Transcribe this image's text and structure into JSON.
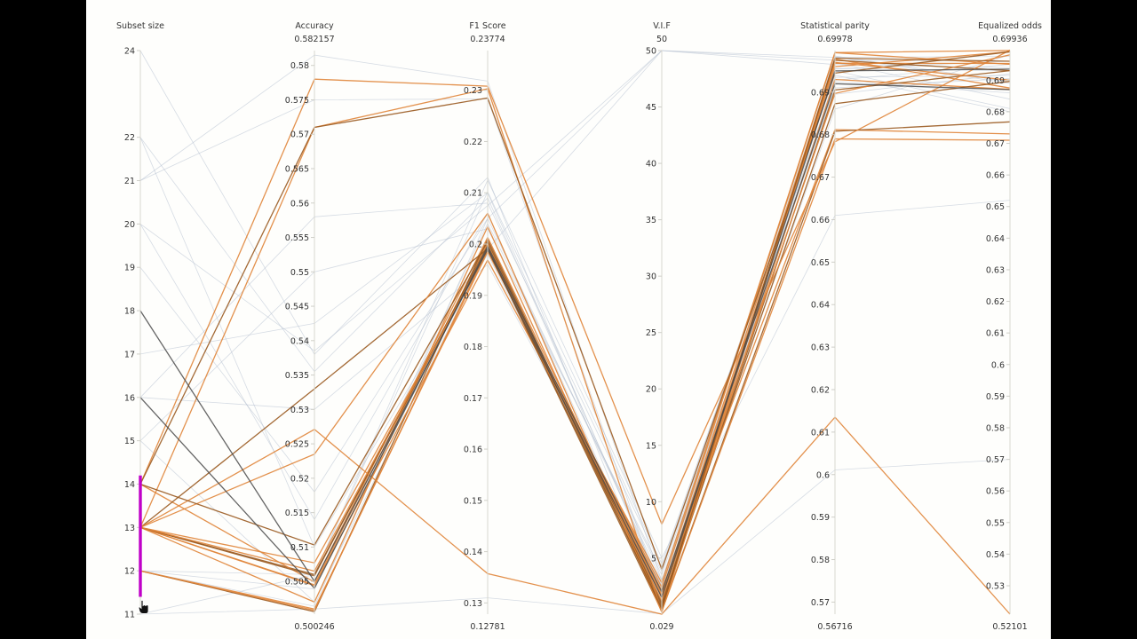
{
  "chart_data": {
    "type": "parallel_coordinates",
    "colors": {
      "selected": "#e0853a",
      "selected_dark": "#9a5a20",
      "unselected": "#b4bfcf",
      "highlight": "#4a4a4a",
      "brush": "#c000c8"
    },
    "axes": [
      {
        "key": "subset",
        "title": "Subset size",
        "min": 11,
        "max": 24,
        "min_label": "",
        "max_label": "",
        "ticks": [
          11,
          12,
          13,
          14,
          15,
          16,
          17,
          18,
          19,
          20,
          21,
          22,
          24
        ],
        "tick_labels": [
          "11",
          "12",
          "13",
          "14",
          "15",
          "16",
          "17",
          "18",
          "19",
          "20",
          "21",
          "22",
          "24"
        ]
      },
      {
        "key": "acc",
        "title": "Accuracy",
        "min": 0.500246,
        "max": 0.582157,
        "min_label": "0.500246",
        "max_label": "0.582157",
        "ticks": [
          0.505,
          0.51,
          0.515,
          0.52,
          0.525,
          0.53,
          0.535,
          0.54,
          0.545,
          0.55,
          0.555,
          0.56,
          0.565,
          0.57,
          0.575,
          0.58
        ],
        "tick_labels": [
          "0.505",
          "0.51",
          "0.515",
          "0.52",
          "0.525",
          "0.53",
          "0.535",
          "0.54",
          "0.545",
          "0.55",
          "0.555",
          "0.56",
          "0.565",
          "0.57",
          "0.575",
          "0.58"
        ]
      },
      {
        "key": "f1",
        "title": "F1 Score",
        "min": 0.12781,
        "max": 0.23774,
        "min_label": "0.12781",
        "max_label": "0.23774",
        "ticks": [
          0.13,
          0.14,
          0.15,
          0.16,
          0.17,
          0.18,
          0.19,
          0.2,
          0.21,
          0.22,
          0.23
        ],
        "tick_labels": [
          "0.13",
          "0.14",
          "0.15",
          "0.16",
          "0.17",
          "0.18",
          "0.19",
          "0.2",
          "0.21",
          "0.22",
          "0.23"
        ]
      },
      {
        "key": "vif",
        "title": "V.I.F",
        "min": 0.029,
        "max": 50,
        "min_label": "0.029",
        "max_label": "50",
        "ticks": [
          5,
          10,
          15,
          20,
          25,
          30,
          35,
          40,
          45,
          50
        ],
        "tick_labels": [
          "5",
          "10",
          "15",
          "20",
          "25",
          "30",
          "35",
          "40",
          "45",
          "50"
        ]
      },
      {
        "key": "sp",
        "title": "Statistical parity",
        "min": 0.56716,
        "max": 0.69978,
        "min_label": "0.56716",
        "max_label": "0.69978",
        "ticks": [
          0.57,
          0.58,
          0.59,
          0.6,
          0.61,
          0.62,
          0.63,
          0.64,
          0.65,
          0.66,
          0.67,
          0.68,
          0.69
        ],
        "tick_labels": [
          "0.57",
          "0.58",
          "0.59",
          "0.6",
          "0.61",
          "0.62",
          "0.63",
          "0.64",
          "0.65",
          "0.66",
          "0.67",
          "0.68",
          "0.69"
        ]
      },
      {
        "key": "eo",
        "title": "Equalized odds",
        "min": 0.52101,
        "max": 0.69936,
        "min_label": "0.52101",
        "max_label": "0.69936",
        "ticks": [
          0.53,
          0.54,
          0.55,
          0.56,
          0.57,
          0.58,
          0.59,
          0.6,
          0.61,
          0.62,
          0.63,
          0.64,
          0.65,
          0.66,
          0.67,
          0.68,
          0.69
        ],
        "tick_labels": [
          "0.53",
          "0.54",
          "0.55",
          "0.56",
          "0.57",
          "0.58",
          "0.59",
          "0.6",
          "0.61",
          "0.62",
          "0.63",
          "0.64",
          "0.65",
          "0.66",
          "0.67",
          "0.68",
          "0.69"
        ]
      }
    ],
    "brush": {
      "axis": "subset",
      "range": [
        11.4,
        14.2
      ]
    },
    "series": [
      {
        "status": "selected",
        "values": [
          13,
          0.5077,
          0.1987,
          1.8,
          0.6978,
          0.6875
        ]
      },
      {
        "status": "selected",
        "values": [
          13,
          0.5045,
          0.2003,
          1.2,
          0.6968,
          0.6953
        ]
      },
      {
        "status": "selected",
        "values": [
          12,
          0.5006,
          0.201,
          0.8,
          0.6975,
          0.693
        ]
      },
      {
        "status": "selected",
        "values": [
          13,
          0.502,
          0.2034,
          0.5,
          0.693,
          0.6871
        ]
      },
      {
        "status": "selected",
        "values": [
          12,
          0.501,
          0.1985,
          2.4,
          0.6993,
          0.6994
        ]
      },
      {
        "status": "selected",
        "values": [
          13,
          0.506,
          0.1992,
          0.6,
          0.6905,
          0.693
        ]
      },
      {
        "status": "selected",
        "values": [
          14,
          0.5049,
          0.2013,
          1.5,
          0.6897,
          0.698
        ]
      },
      {
        "status": "selected",
        "values": [
          13,
          0.5044,
          0.1969,
          2.8,
          0.6993,
          0.695
        ]
      },
      {
        "status": "selected",
        "values": [
          13,
          0.5058,
          0.1998,
          1.0,
          0.6873,
          0.6896
        ]
      },
      {
        "status": "selected",
        "values": [
          13,
          0.5065,
          0.1991,
          2.1,
          0.6812,
          0.673
        ]
      },
      {
        "status": "selected",
        "values": [
          12,
          0.5008,
          0.199,
          1.6,
          0.696,
          0.699
        ]
      },
      {
        "status": "selected",
        "values": [
          13,
          0.533,
          0.1991,
          0.3,
          0.6808,
          0.6768
        ]
      },
      {
        "status": "selected",
        "values": [
          14,
          0.578,
          0.2308,
          8.0,
          0.6783,
          0.6995
        ]
      },
      {
        "status": "selected",
        "values": [
          13,
          0.571,
          0.2303,
          0.3,
          0.679,
          0.671
        ]
      },
      {
        "status": "selected",
        "values": [
          14,
          0.571,
          0.2285,
          4.0,
          0.6945,
          0.699
        ]
      },
      {
        "status": "selected",
        "values": [
          13,
          0.5271,
          0.1357,
          0.03,
          0.6135,
          0.521
        ]
      },
      {
        "status": "selected",
        "values": [
          13,
          0.5235,
          0.206,
          0.2,
          0.697,
          0.69
        ]
      },
      {
        "status": "selected",
        "values": [
          14,
          0.5103,
          0.2005,
          0.5,
          0.698,
          0.696
        ]
      },
      {
        "status": "highlight",
        "values": [
          18,
          0.505,
          0.199,
          1.5,
          0.695,
          0.6935
        ]
      },
      {
        "status": "highlight",
        "values": [
          16,
          0.504,
          0.1995,
          2.0,
          0.692,
          0.687
        ]
      },
      {
        "status": "unselected",
        "values": [
          12,
          0.5014,
          0.205,
          3.0,
          0.6928,
          0.695
        ]
      },
      {
        "status": "unselected",
        "values": [
          12,
          0.5039,
          0.204,
          3.5,
          0.6955,
          0.693
        ]
      },
      {
        "status": "unselected",
        "values": [
          12,
          0.506,
          0.2102,
          4.5,
          0.694,
          0.68
        ]
      },
      {
        "status": "unselected",
        "values": [
          11,
          0.501,
          0.131,
          0.05,
          0.6011,
          0.57
        ]
      },
      {
        "status": "unselected",
        "values": [
          11,
          0.506,
          0.2125,
          5.0,
          0.661,
          0.652
        ]
      },
      {
        "status": "unselected",
        "values": [
          24,
          0.538,
          0.213,
          0.5,
          0.6983,
          0.689
        ]
      },
      {
        "status": "unselected",
        "values": [
          22,
          0.5355,
          0.209,
          2.5,
          0.695,
          0.681
        ]
      },
      {
        "status": "unselected",
        "values": [
          21,
          0.5815,
          0.2318,
          3.0,
          0.6985,
          0.6895
        ]
      },
      {
        "status": "unselected",
        "values": [
          21,
          0.575,
          0.2283,
          1.5,
          0.686,
          0.698
        ]
      },
      {
        "status": "unselected",
        "values": [
          20,
          0.5385,
          0.2075,
          50,
          0.6982,
          0.6975
        ]
      },
      {
        "status": "unselected",
        "values": [
          19,
          0.518,
          0.205,
          50,
          0.6965,
          0.694
        ]
      },
      {
        "status": "unselected",
        "values": [
          17,
          0.5425,
          0.21,
          2.2,
          0.6925,
          0.686
        ]
      },
      {
        "status": "unselected",
        "values": [
          16,
          0.558,
          0.208,
          4.2,
          0.6955,
          0.696
        ]
      },
      {
        "status": "unselected",
        "values": [
          15,
          0.55,
          0.203,
          3.8,
          0.697,
          0.684
        ]
      },
      {
        "status": "unselected",
        "values": [
          22,
          0.51,
          0.198,
          1.8,
          0.6895,
          0.692
        ]
      },
      {
        "status": "unselected",
        "values": [
          16,
          0.53,
          0.196,
          2.6,
          0.691,
          0.6905
        ]
      },
      {
        "status": "unselected",
        "values": [
          15,
          0.502,
          0.199,
          50,
          0.6975,
          0.696
        ]
      },
      {
        "status": "unselected",
        "values": [
          20,
          0.514,
          0.206,
          0.8,
          0.6935,
          0.6915
        ]
      }
    ]
  }
}
